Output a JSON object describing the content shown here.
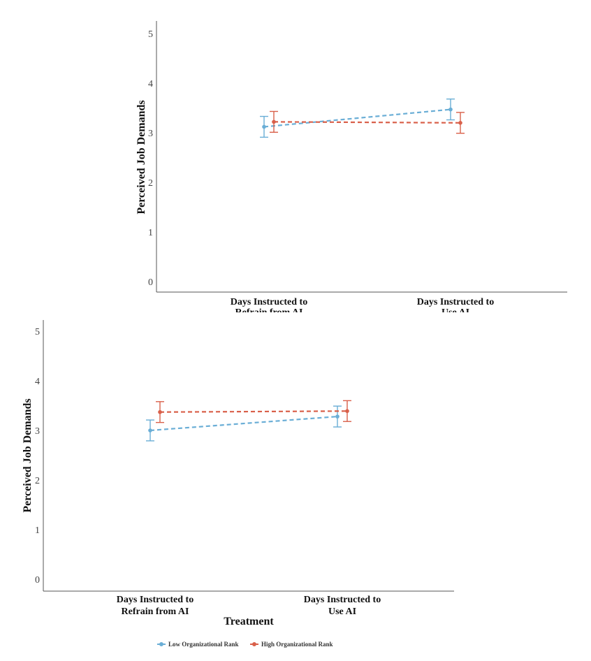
{
  "colors": {
    "low": "#6aaed6",
    "high": "#d9604a"
  },
  "chart_data": [
    {
      "type": "line",
      "title": "",
      "xlabel": "",
      "ylabel": "Perceived Job Demands",
      "ylim": [
        0,
        5
      ],
      "yticks": [
        "0",
        "1",
        "2",
        "3",
        "4",
        "5"
      ],
      "categories": [
        "Days Instructed to\nRefrain from AI",
        "Days Instructed to\nUse AI"
      ],
      "error_bars": true,
      "series": [
        {
          "key": "low",
          "values": [
            3.12,
            3.47
          ],
          "lower": [
            2.91,
            3.26
          ],
          "upper": [
            3.33,
            3.68
          ]
        },
        {
          "key": "high",
          "values": [
            3.22,
            3.2
          ],
          "lower": [
            3.01,
            2.99
          ],
          "upper": [
            3.43,
            3.41
          ]
        }
      ]
    },
    {
      "type": "line",
      "title": "",
      "xlabel": "Treatment",
      "ylabel": "Perceived Job Demands",
      "ylim": [
        0,
        5
      ],
      "yticks": [
        "0",
        "1",
        "2",
        "3",
        "4",
        "5"
      ],
      "categories": [
        "Days Instructed to\nRefrain from AI",
        "Days Instructed to\nUse AI"
      ],
      "error_bars": true,
      "series": [
        {
          "key": "low",
          "values": [
            3.0,
            3.28
          ],
          "lower": [
            2.79,
            3.07
          ],
          "upper": [
            3.21,
            3.49
          ]
        },
        {
          "key": "high",
          "values": [
            3.37,
            3.39
          ],
          "lower": [
            3.16,
            3.18
          ],
          "upper": [
            3.58,
            3.6
          ]
        }
      ]
    }
  ],
  "legend": {
    "position": "bottom",
    "items": [
      {
        "key": "low",
        "label": "Low Organizational Rank"
      },
      {
        "key": "high",
        "label": "High Organizational Rank"
      }
    ]
  }
}
